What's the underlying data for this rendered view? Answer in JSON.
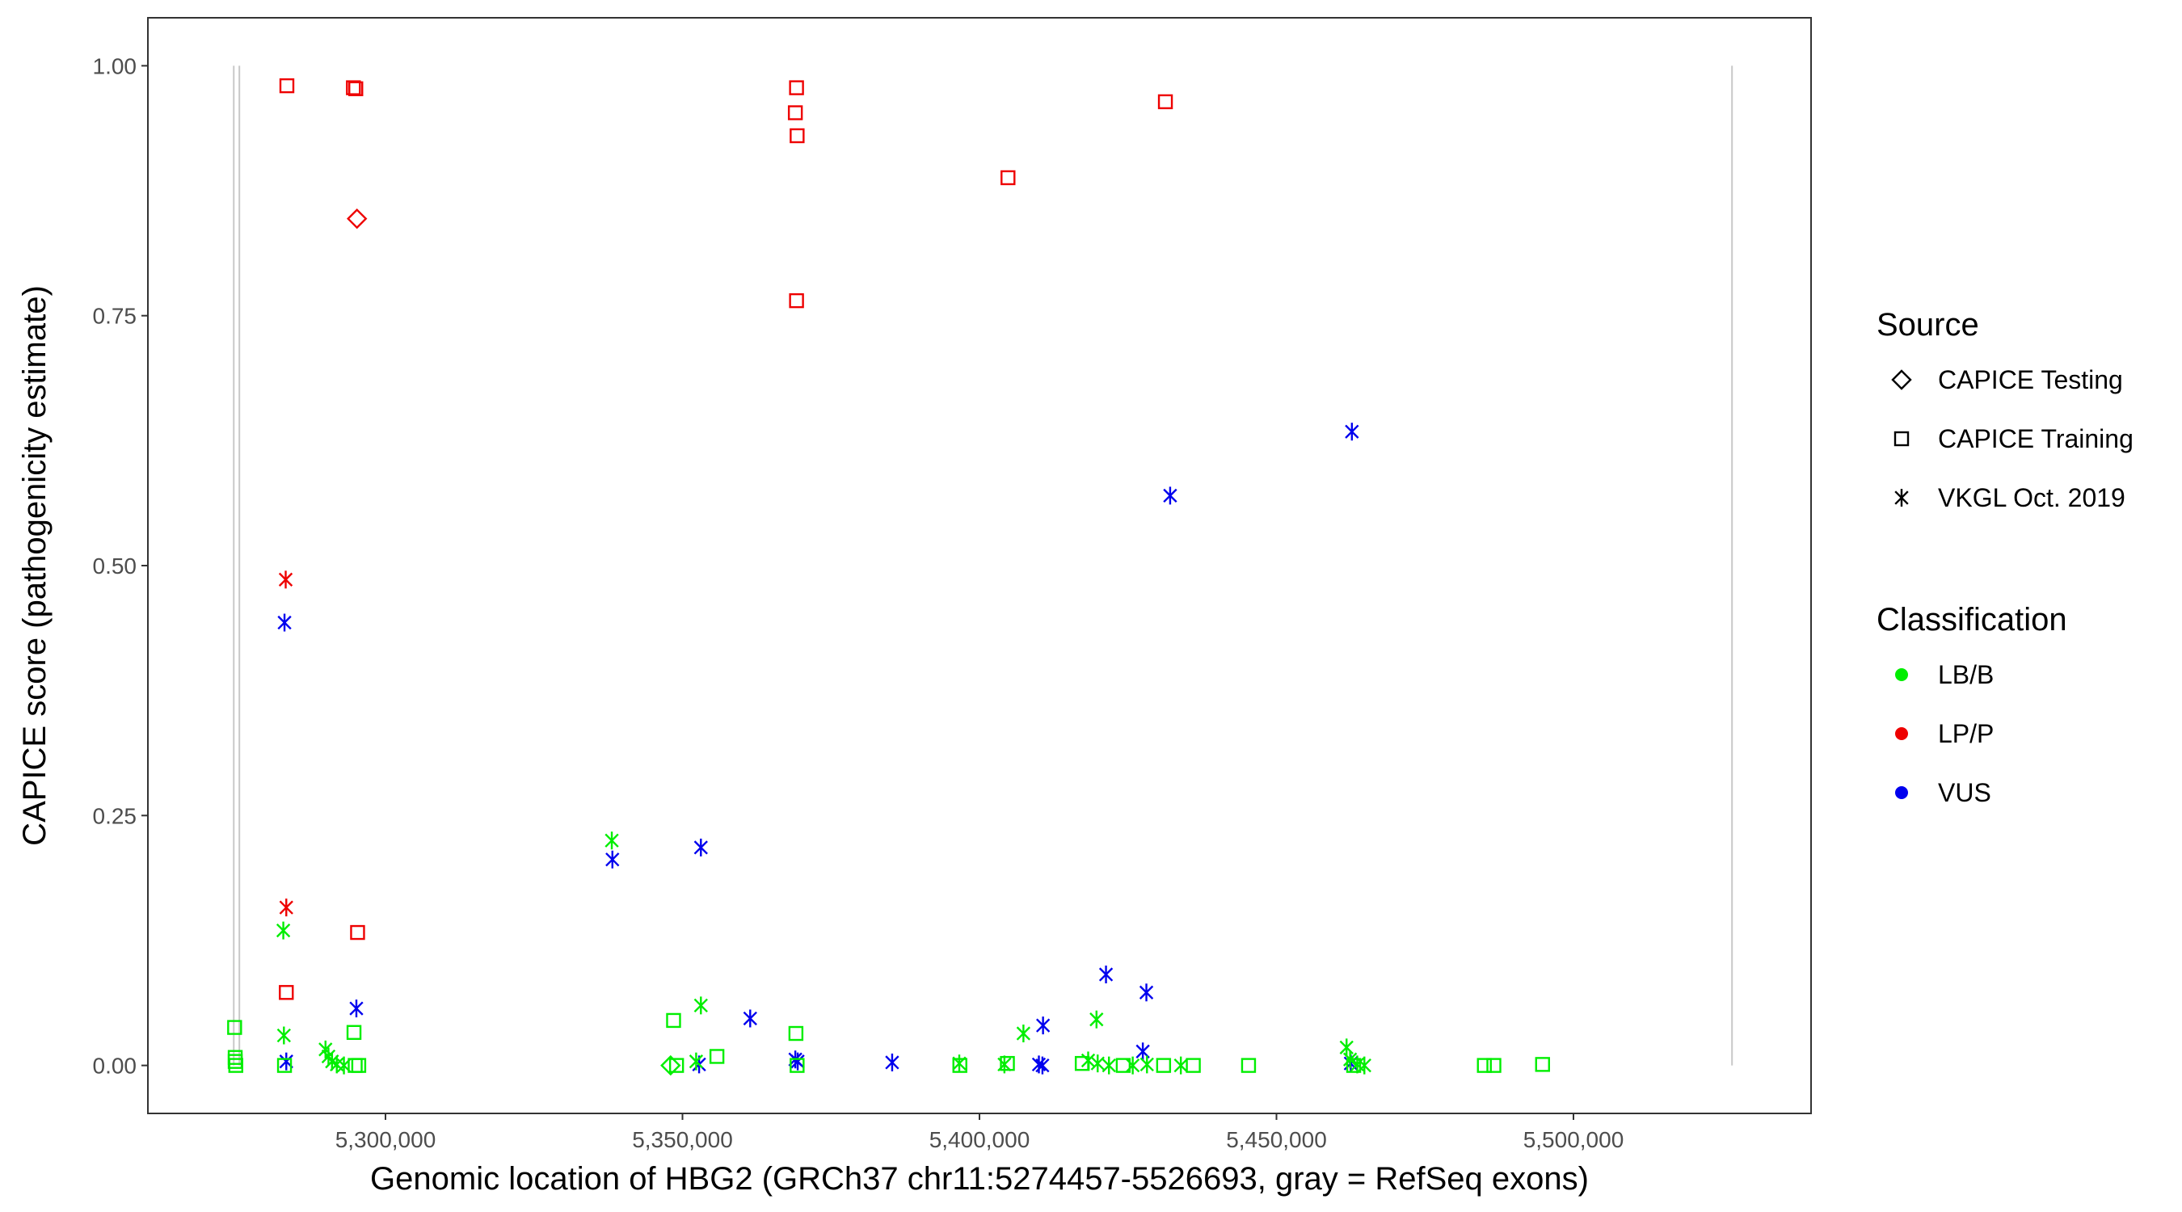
{
  "chart_data": {
    "type": "scatter",
    "xlabel": "Genomic location of HBG2 (GRCh37 chr11:5274457-5526693, gray = RefSeq exons)",
    "ylabel": "CAPICE score (pathogenicity estimate)",
    "xlim": [
      5260000,
      5540000
    ],
    "ylim": [
      -0.048,
      1.048
    ],
    "x_ticks": [
      5300000,
      5350000,
      5400000,
      5450000,
      5500000
    ],
    "x_tick_labels": [
      "5,300,000",
      "5,350,000",
      "5,400,000",
      "5,450,000",
      "5,500,000"
    ],
    "y_ticks": [
      0,
      0.25,
      0.5,
      0.75,
      1.0
    ],
    "y_tick_labels": [
      "0.00",
      "0.25",
      "0.50",
      "0.75",
      "1.00"
    ],
    "grid": false,
    "exons_x": [
      5274457,
      5275400,
      5526693
    ],
    "colors": {
      "LB/B": "#00ee00",
      "LP/P": "#ee0000",
      "VUS": "#0000ee",
      "exon": "#c8c8c8"
    },
    "legend": {
      "position": "right",
      "source_title": "Source",
      "source_items": [
        {
          "shape": "diamond",
          "label": "CAPICE Testing"
        },
        {
          "shape": "square",
          "label": "CAPICE Training"
        },
        {
          "shape": "asterisk",
          "label": "VKGL Oct. 2019"
        }
      ],
      "class_title": "Classification",
      "class_items": [
        {
          "key": "LB/B",
          "label": "LB/B"
        },
        {
          "key": "LP/P",
          "label": "LP/P"
        },
        {
          "key": "VUS",
          "label": "VUS"
        }
      ]
    },
    "points": [
      {
        "x": 5283400,
        "y": 0.98,
        "shape": "square",
        "cls": "LP/P"
      },
      {
        "x": 5294600,
        "y": 0.978,
        "shape": "square",
        "cls": "LP/P"
      },
      {
        "x": 5295000,
        "y": 0.977,
        "shape": "square",
        "cls": "LP/P"
      },
      {
        "x": 5295200,
        "y": 0.847,
        "shape": "diamond",
        "cls": "LP/P"
      },
      {
        "x": 5369200,
        "y": 0.978,
        "shape": "square",
        "cls": "LP/P"
      },
      {
        "x": 5369000,
        "y": 0.953,
        "shape": "square",
        "cls": "LP/P"
      },
      {
        "x": 5369300,
        "y": 0.93,
        "shape": "square",
        "cls": "LP/P"
      },
      {
        "x": 5369200,
        "y": 0.765,
        "shape": "square",
        "cls": "LP/P"
      },
      {
        "x": 5404800,
        "y": 0.888,
        "shape": "square",
        "cls": "LP/P"
      },
      {
        "x": 5431300,
        "y": 0.964,
        "shape": "square",
        "cls": "LP/P"
      },
      {
        "x": 5283200,
        "y": 0.486,
        "shape": "asterisk",
        "cls": "LP/P"
      },
      {
        "x": 5283300,
        "y": 0.158,
        "shape": "asterisk",
        "cls": "LP/P"
      },
      {
        "x": 5283300,
        "y": 0.073,
        "shape": "square",
        "cls": "LP/P"
      },
      {
        "x": 5295300,
        "y": 0.133,
        "shape": "square",
        "cls": "LP/P"
      },
      {
        "x": 5283000,
        "y": 0.443,
        "shape": "asterisk",
        "cls": "VUS"
      },
      {
        "x": 5462700,
        "y": 0.634,
        "shape": "asterisk",
        "cls": "VUS"
      },
      {
        "x": 5432100,
        "y": 0.57,
        "shape": "asterisk",
        "cls": "VUS"
      },
      {
        "x": 5338200,
        "y": 0.206,
        "shape": "asterisk",
        "cls": "VUS"
      },
      {
        "x": 5353100,
        "y": 0.218,
        "shape": "asterisk",
        "cls": "VUS"
      },
      {
        "x": 5295100,
        "y": 0.057,
        "shape": "asterisk",
        "cls": "VUS"
      },
      {
        "x": 5361400,
        "y": 0.047,
        "shape": "asterisk",
        "cls": "VUS"
      },
      {
        "x": 5421300,
        "y": 0.091,
        "shape": "asterisk",
        "cls": "VUS"
      },
      {
        "x": 5428100,
        "y": 0.073,
        "shape": "asterisk",
        "cls": "VUS"
      },
      {
        "x": 5410700,
        "y": 0.04,
        "shape": "asterisk",
        "cls": "VUS"
      },
      {
        "x": 5427500,
        "y": 0.014,
        "shape": "asterisk",
        "cls": "VUS"
      },
      {
        "x": 5283300,
        "y": 0.004,
        "shape": "asterisk",
        "cls": "VUS"
      },
      {
        "x": 5352800,
        "y": 0.001,
        "shape": "asterisk",
        "cls": "VUS"
      },
      {
        "x": 5369000,
        "y": 0.006,
        "shape": "asterisk",
        "cls": "VUS"
      },
      {
        "x": 5369400,
        "y": 0.004,
        "shape": "asterisk",
        "cls": "VUS"
      },
      {
        "x": 5385300,
        "y": 0.003,
        "shape": "asterisk",
        "cls": "VUS"
      },
      {
        "x": 5410000,
        "y": 0.001,
        "shape": "asterisk",
        "cls": "VUS"
      },
      {
        "x": 5410600,
        "y": 0.0,
        "shape": "asterisk",
        "cls": "VUS"
      },
      {
        "x": 5462500,
        "y": 0.002,
        "shape": "asterisk",
        "cls": "VUS"
      },
      {
        "x": 5338100,
        "y": 0.225,
        "shape": "asterisk",
        "cls": "LB/B"
      },
      {
        "x": 5282800,
        "y": 0.135,
        "shape": "asterisk",
        "cls": "LB/B"
      },
      {
        "x": 5282900,
        "y": 0.03,
        "shape": "asterisk",
        "cls": "LB/B"
      },
      {
        "x": 5353100,
        "y": 0.06,
        "shape": "asterisk",
        "cls": "LB/B"
      },
      {
        "x": 5407400,
        "y": 0.032,
        "shape": "asterisk",
        "cls": "LB/B"
      },
      {
        "x": 5419700,
        "y": 0.046,
        "shape": "asterisk",
        "cls": "LB/B"
      },
      {
        "x": 5461800,
        "y": 0.018,
        "shape": "asterisk",
        "cls": "LB/B"
      },
      {
        "x": 5289900,
        "y": 0.016,
        "shape": "asterisk",
        "cls": "LB/B"
      },
      {
        "x": 5290400,
        "y": 0.009,
        "shape": "asterisk",
        "cls": "LB/B"
      },
      {
        "x": 5291000,
        "y": 0.004,
        "shape": "asterisk",
        "cls": "LB/B"
      },
      {
        "x": 5291800,
        "y": 0.001,
        "shape": "asterisk",
        "cls": "LB/B"
      },
      {
        "x": 5293000,
        "y": 0.0,
        "shape": "asterisk",
        "cls": "LB/B"
      },
      {
        "x": 5352300,
        "y": 0.004,
        "shape": "asterisk",
        "cls": "LB/B"
      },
      {
        "x": 5396600,
        "y": 0.002,
        "shape": "asterisk",
        "cls": "LB/B"
      },
      {
        "x": 5404200,
        "y": 0.001,
        "shape": "asterisk",
        "cls": "LB/B"
      },
      {
        "x": 5418300,
        "y": 0.005,
        "shape": "asterisk",
        "cls": "LB/B"
      },
      {
        "x": 5419900,
        "y": 0.002,
        "shape": "asterisk",
        "cls": "LB/B"
      },
      {
        "x": 5421800,
        "y": 0.0,
        "shape": "asterisk",
        "cls": "LB/B"
      },
      {
        "x": 5425800,
        "y": 0.0,
        "shape": "asterisk",
        "cls": "LB/B"
      },
      {
        "x": 5428200,
        "y": 0.001,
        "shape": "asterisk",
        "cls": "LB/B"
      },
      {
        "x": 5433900,
        "y": 0.0,
        "shape": "asterisk",
        "cls": "LB/B"
      },
      {
        "x": 5462400,
        "y": 0.006,
        "shape": "asterisk",
        "cls": "LB/B"
      },
      {
        "x": 5463600,
        "y": 0.001,
        "shape": "asterisk",
        "cls": "LB/B"
      },
      {
        "x": 5464800,
        "y": 0.0,
        "shape": "asterisk",
        "cls": "LB/B"
      },
      {
        "x": 5274600,
        "y": 0.038,
        "shape": "square",
        "cls": "LB/B"
      },
      {
        "x": 5274700,
        "y": 0.008,
        "shape": "square",
        "cls": "LB/B"
      },
      {
        "x": 5274700,
        "y": 0.004,
        "shape": "square",
        "cls": "LB/B"
      },
      {
        "x": 5274800,
        "y": 0.0,
        "shape": "square",
        "cls": "LB/B"
      },
      {
        "x": 5283000,
        "y": 0.0,
        "shape": "square",
        "cls": "LB/B"
      },
      {
        "x": 5294700,
        "y": 0.033,
        "shape": "square",
        "cls": "LB/B"
      },
      {
        "x": 5294900,
        "y": 0.0,
        "shape": "square",
        "cls": "LB/B"
      },
      {
        "x": 5295500,
        "y": 0.0,
        "shape": "square",
        "cls": "LB/B"
      },
      {
        "x": 5348500,
        "y": 0.045,
        "shape": "square",
        "cls": "LB/B"
      },
      {
        "x": 5349000,
        "y": 0.0,
        "shape": "square",
        "cls": "LB/B"
      },
      {
        "x": 5355800,
        "y": 0.009,
        "shape": "square",
        "cls": "LB/B"
      },
      {
        "x": 5369100,
        "y": 0.032,
        "shape": "square",
        "cls": "LB/B"
      },
      {
        "x": 5369300,
        "y": 0.0,
        "shape": "square",
        "cls": "LB/B"
      },
      {
        "x": 5396700,
        "y": 0.0,
        "shape": "square",
        "cls": "LB/B"
      },
      {
        "x": 5404700,
        "y": 0.002,
        "shape": "square",
        "cls": "LB/B"
      },
      {
        "x": 5417300,
        "y": 0.002,
        "shape": "square",
        "cls": "LB/B"
      },
      {
        "x": 5424200,
        "y": 0.0,
        "shape": "square",
        "cls": "LB/B"
      },
      {
        "x": 5431000,
        "y": 0.0,
        "shape": "square",
        "cls": "LB/B"
      },
      {
        "x": 5436000,
        "y": 0.0,
        "shape": "square",
        "cls": "LB/B"
      },
      {
        "x": 5445300,
        "y": 0.0,
        "shape": "square",
        "cls": "LB/B"
      },
      {
        "x": 5463000,
        "y": 0.0,
        "shape": "square",
        "cls": "LB/B"
      },
      {
        "x": 5485000,
        "y": 0.0,
        "shape": "square",
        "cls": "LB/B"
      },
      {
        "x": 5486600,
        "y": 0.0,
        "shape": "square",
        "cls": "LB/B"
      },
      {
        "x": 5494800,
        "y": 0.001,
        "shape": "square",
        "cls": "LB/B"
      },
      {
        "x": 5348000,
        "y": 0.0,
        "shape": "diamond",
        "cls": "LB/B"
      }
    ]
  }
}
